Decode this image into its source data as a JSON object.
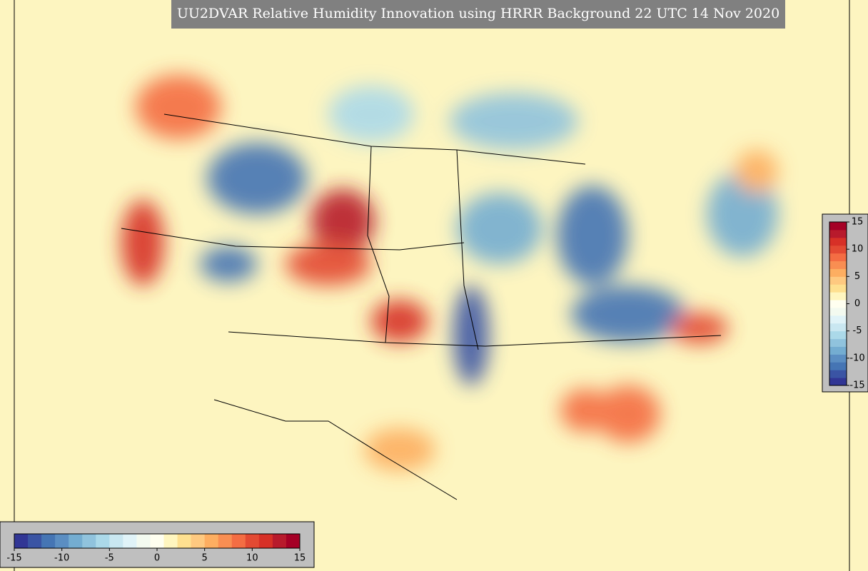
{
  "title": "UU2DVAR Relative Humidity Innovation using HRRR Background 22 UTC 14 Nov 2020",
  "colorbar_bottom": {
    "range": [
      -15,
      15
    ],
    "ticks": [
      -15,
      -10,
      -5,
      0,
      5,
      10,
      15
    ],
    "colors": [
      "#313695",
      "#3a54a4",
      "#4575b4",
      "#5b8ec2",
      "#74add1",
      "#90c3dd",
      "#abd9e9",
      "#c9e7f1",
      "#e0f3f8",
      "#f3faf0",
      "#fffff0",
      "#fff6bf",
      "#fee090",
      "#fec980",
      "#fdae61",
      "#f98e52",
      "#f46d43",
      "#e34a33",
      "#d73027",
      "#b81a2c",
      "#a50026"
    ]
  },
  "colorbar_right": {
    "range": [
      -15,
      15
    ],
    "ticks": [
      -15,
      -10,
      -5,
      0,
      5,
      10,
      15
    ],
    "colors": [
      "#313695",
      "#3a54a4",
      "#4575b4",
      "#5b8ec2",
      "#74add1",
      "#90c3dd",
      "#abd9e9",
      "#c9e7f1",
      "#e0f3f8",
      "#f3faf0",
      "#fffff0",
      "#fff6bf",
      "#fee090",
      "#fec980",
      "#fdae61",
      "#f98e52",
      "#f46d43",
      "#e34a33",
      "#d73027",
      "#b81a2c",
      "#a50026"
    ]
  }
}
